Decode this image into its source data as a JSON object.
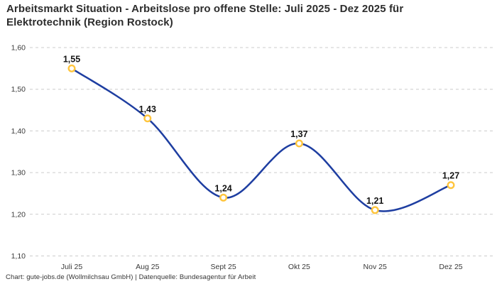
{
  "title": "Arbeitsmarkt Situation - Arbeitslose pro offene Stelle: Juli 2025 - Dez 2025 für Elektrotechnik (Region Rostock)",
  "footer": "Chart: gute-jobs.de (Wollmilchsau GmbH) | Datenquelle: Bundesagentur für Arbeit",
  "colors": {
    "background": "#ffffff",
    "title_text": "#2d2d2d",
    "axis_text": "#3a3a3a",
    "grid": "#cccccc",
    "line": "#1e3ea1",
    "marker_stroke": "#ffc53d",
    "marker_fill": "#ffffff",
    "data_label": "#141414",
    "footer_text": "#333333"
  },
  "chart_data": {
    "type": "line",
    "title": "Arbeitsmarkt Situation - Arbeitslose pro offene Stelle: Juli 2025 - Dez 2025 für Elektrotechnik (Region Rostock)",
    "categories": [
      "Juli 25",
      "Aug 25",
      "Sept 25",
      "Okt 25",
      "Nov 25",
      "Dez 25"
    ],
    "values": [
      1.55,
      1.43,
      1.24,
      1.37,
      1.21,
      1.27
    ],
    "value_labels": [
      "1,55",
      "1,43",
      "1,24",
      "1,37",
      "1,21",
      "1,27"
    ],
    "series_name": "Arbeitslose pro offene Stelle",
    "xlabel": "",
    "ylabel": "",
    "ylim": [
      1.1,
      1.6
    ],
    "y_tick_values": [
      1.6,
      1.5,
      1.4,
      1.3,
      1.2,
      1.1
    ],
    "y_tick_labels": [
      "1,60",
      "1,50",
      "1,40",
      "1,30",
      "1,20",
      "1,10"
    ],
    "grid": "horizontal-dashed",
    "legend": "none",
    "line_style": "smooth",
    "marker_style": "open-circle",
    "data_labels": "above-points"
  }
}
